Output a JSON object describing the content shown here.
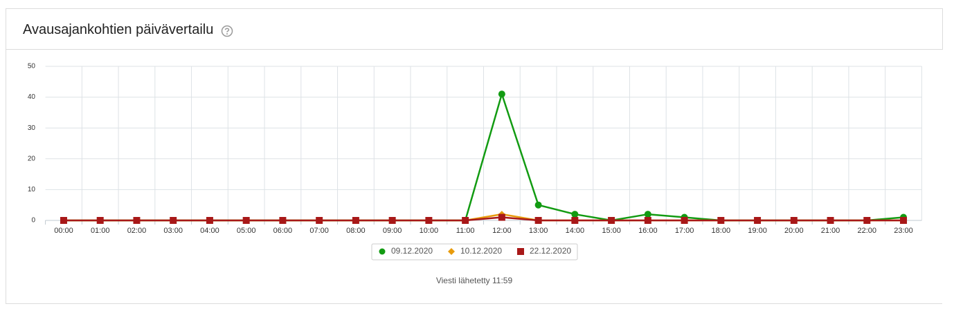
{
  "chart_data": {
    "type": "line",
    "title": "Avausajankohtien päivävertailu",
    "categories": [
      "00:00",
      "01:00",
      "02:00",
      "03:00",
      "04:00",
      "05:00",
      "06:00",
      "07:00",
      "08:00",
      "09:00",
      "10:00",
      "11:00",
      "12:00",
      "13:00",
      "14:00",
      "15:00",
      "16:00",
      "17:00",
      "18:00",
      "19:00",
      "20:00",
      "21:00",
      "22:00",
      "23:00"
    ],
    "series": [
      {
        "name": "09.12.2020",
        "color": "#129b12",
        "marker": "circle",
        "values": [
          0,
          0,
          0,
          0,
          0,
          0,
          0,
          0,
          0,
          0,
          0,
          0,
          41,
          5,
          2,
          0,
          2,
          1,
          0,
          0,
          0,
          0,
          0,
          1
        ]
      },
      {
        "name": "10.12.2020",
        "color": "#e89b0c",
        "marker": "diamond",
        "values": [
          0,
          0,
          0,
          0,
          0,
          0,
          0,
          0,
          0,
          0,
          0,
          0,
          2,
          0,
          0,
          0,
          0,
          0,
          0,
          0,
          0,
          0,
          0,
          0
        ]
      },
      {
        "name": "22.12.2020",
        "color": "#a81818",
        "marker": "square",
        "values": [
          0,
          0,
          0,
          0,
          0,
          0,
          0,
          0,
          0,
          0,
          0,
          0,
          1,
          0,
          0,
          0,
          0,
          0,
          0,
          0,
          0,
          0,
          0,
          0
        ]
      }
    ],
    "ylim": [
      0,
      50
    ],
    "yticks": [
      0,
      10,
      20,
      30,
      40,
      50
    ],
    "grid": true,
    "annotation": "Viesti lähetetty 11:59"
  }
}
